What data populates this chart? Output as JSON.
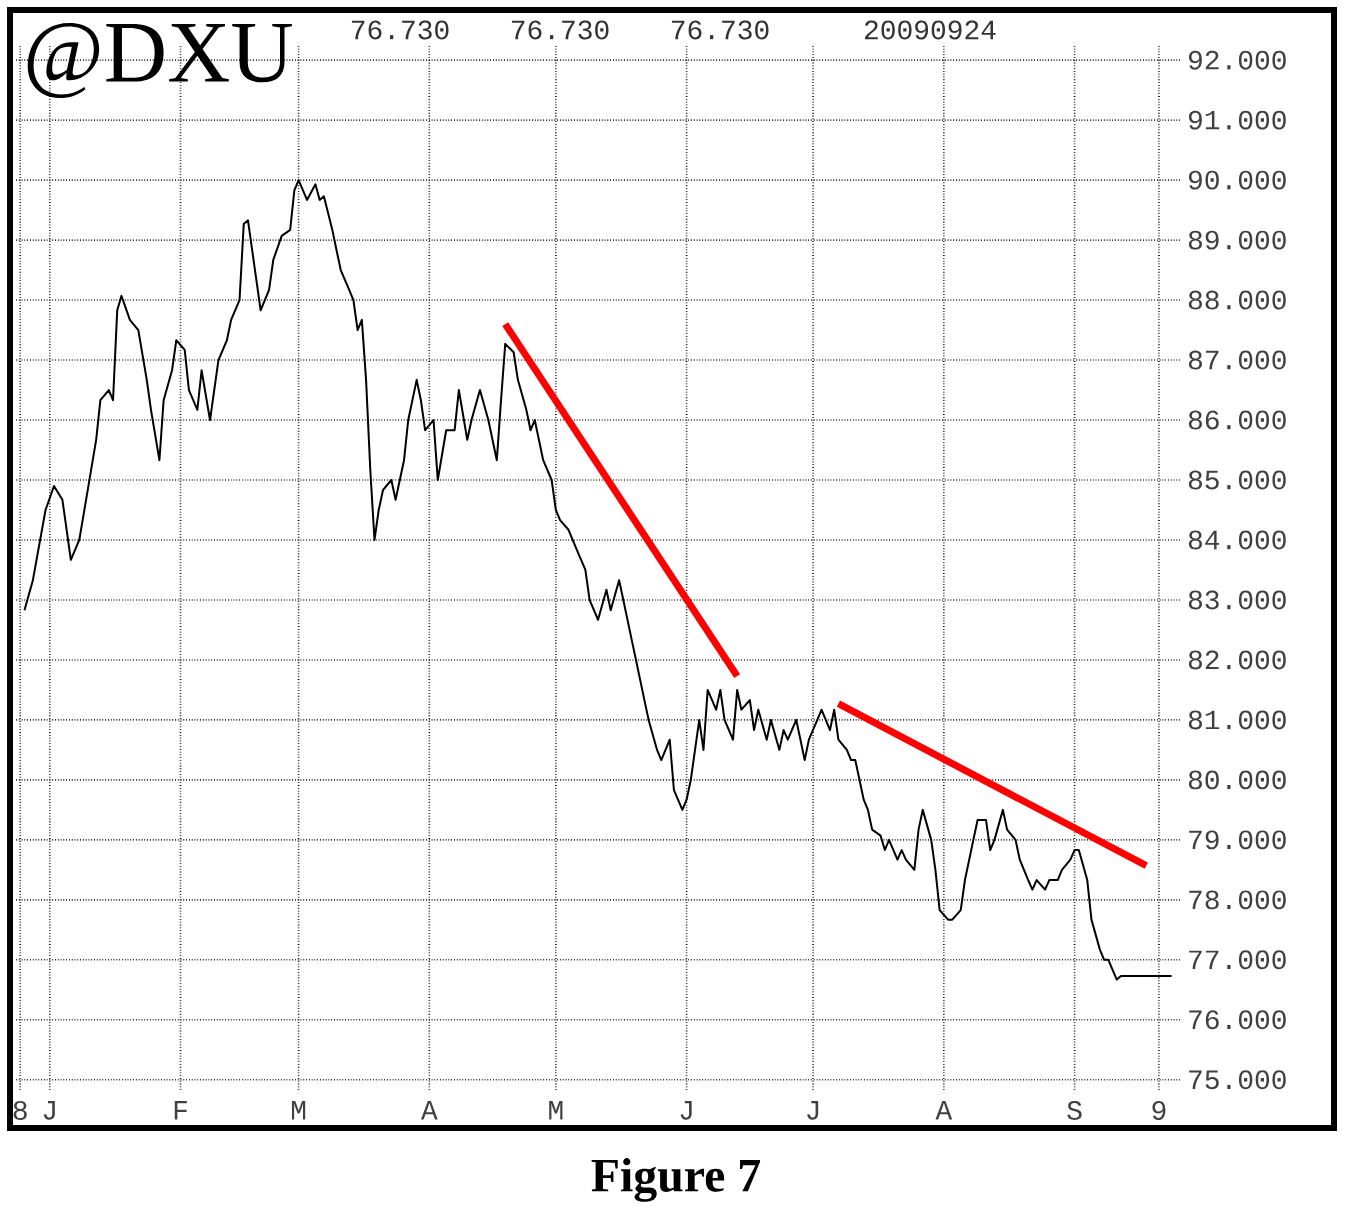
{
  "chart_data": {
    "type": "line",
    "title": "@DXU",
    "annotations": [
      "76.730",
      "76.730",
      "76.730",
      "20090924",
      "Figure 7"
    ],
    "xlim": [
      "2008-12-24",
      "2009-09-26"
    ],
    "ylim": [
      74.83,
      92.27
    ],
    "xticks": [
      {
        "value": "2008-12-25",
        "label": "8"
      },
      {
        "value": "2009-01-01",
        "label": "J"
      },
      {
        "value": "2009-02-01",
        "label": "F"
      },
      {
        "value": "2009-03-01",
        "label": "M"
      },
      {
        "value": "2009-04-01",
        "label": "A"
      },
      {
        "value": "2009-05-01",
        "label": "M"
      },
      {
        "value": "2009-06-01",
        "label": "J"
      },
      {
        "value": "2009-07-01",
        "label": "J"
      },
      {
        "value": "2009-08-01",
        "label": "A"
      },
      {
        "value": "2009-09-01",
        "label": "S"
      },
      {
        "value": "2009-09-21",
        "label": "9"
      }
    ],
    "yticks": [
      {
        "value": 75,
        "label": "75.000"
      },
      {
        "value": 76,
        "label": "76.000"
      },
      {
        "value": 77,
        "label": "77.000"
      },
      {
        "value": 78,
        "label": "78.000"
      },
      {
        "value": 79,
        "label": "79.000"
      },
      {
        "value": 80,
        "label": "80.000"
      },
      {
        "value": 81,
        "label": "81.000"
      },
      {
        "value": 82,
        "label": "82.000"
      },
      {
        "value": 83,
        "label": "83.000"
      },
      {
        "value": 84,
        "label": "84.000"
      },
      {
        "value": 85,
        "label": "85.000"
      },
      {
        "value": 86,
        "label": "86.000"
      },
      {
        "value": 87,
        "label": "87.000"
      },
      {
        "value": 88,
        "label": "88.000"
      },
      {
        "value": 89,
        "label": "89.000"
      },
      {
        "value": 90,
        "label": "90.000"
      },
      {
        "value": 91,
        "label": "91.000"
      },
      {
        "value": 92,
        "label": "92.000"
      }
    ],
    "grid": true,
    "marker": "none",
    "line_style": "solid",
    "series": [
      {
        "color": "#000000",
        "x": [
          "2008-12-26",
          "2008-12-28",
          "2008-12-31",
          "2009-01-02",
          "2009-01-04",
          "2009-01-06",
          "2009-01-08",
          "2009-01-10",
          "2009-01-12",
          "2009-01-13",
          "2009-01-15",
          "2009-01-16",
          "2009-01-17",
          "2009-01-18",
          "2009-01-20",
          "2009-01-22",
          "2009-01-24",
          "2009-01-25",
          "2009-01-27",
          "2009-01-28",
          "2009-01-30",
          "2009-01-31",
          "2009-02-02",
          "2009-02-03",
          "2009-02-05",
          "2009-02-06",
          "2009-02-08",
          "2009-02-10",
          "2009-02-12",
          "2009-02-13",
          "2009-02-15",
          "2009-02-16",
          "2009-02-17",
          "2009-02-19",
          "2009-02-20",
          "2009-02-22",
          "2009-02-23",
          "2009-02-25",
          "2009-02-27",
          "2009-02-28",
          "2009-03-01",
          "2009-03-03",
          "2009-03-05",
          "2009-03-06",
          "2009-03-07",
          "2009-03-09",
          "2009-03-10",
          "2009-03-11",
          "2009-03-13",
          "2009-03-14",
          "2009-03-15",
          "2009-03-16",
          "2009-03-17",
          "2009-03-18",
          "2009-03-19",
          "2009-03-20",
          "2009-03-21",
          "2009-03-23",
          "2009-03-24",
          "2009-03-26",
          "2009-03-27",
          "2009-03-29",
          "2009-03-30",
          "2009-03-31",
          "2009-04-02",
          "2009-04-03",
          "2009-04-05",
          "2009-04-07",
          "2009-04-08",
          "2009-04-10",
          "2009-04-11",
          "2009-04-13",
          "2009-04-15",
          "2009-04-17",
          "2009-04-18",
          "2009-04-19",
          "2009-04-21",
          "2009-04-22",
          "2009-04-24",
          "2009-04-25",
          "2009-04-26",
          "2009-04-28",
          "2009-04-30",
          "2009-05-01",
          "2009-05-02",
          "2009-05-04",
          "2009-05-06",
          "2009-05-08",
          "2009-05-09",
          "2009-05-11",
          "2009-05-13",
          "2009-05-14",
          "2009-05-16",
          "2009-05-17",
          "2009-05-19",
          "2009-05-20",
          "2009-05-22",
          "2009-05-23",
          "2009-05-25",
          "2009-05-26",
          "2009-05-28",
          "2009-05-29",
          "2009-05-31",
          "2009-06-01",
          "2009-06-02",
          "2009-06-04",
          "2009-06-05",
          "2009-06-06",
          "2009-06-08",
          "2009-06-09",
          "2009-06-10",
          "2009-06-12",
          "2009-06-13",
          "2009-06-14",
          "2009-06-16",
          "2009-06-17",
          "2009-06-18",
          "2009-06-20",
          "2009-06-21",
          "2009-06-23",
          "2009-06-24",
          "2009-06-25",
          "2009-06-27",
          "2009-06-28",
          "2009-06-29",
          "2009-06-30",
          "2009-07-02",
          "2009-07-03",
          "2009-07-05",
          "2009-07-06",
          "2009-07-07",
          "2009-07-09",
          "2009-07-10",
          "2009-07-11",
          "2009-07-13",
          "2009-07-14",
          "2009-07-15",
          "2009-07-17",
          "2009-07-18",
          "2009-07-19",
          "2009-07-21",
          "2009-07-22",
          "2009-07-23",
          "2009-07-25",
          "2009-07-26",
          "2009-07-27",
          "2009-07-29",
          "2009-07-30",
          "2009-07-31",
          "2009-08-02",
          "2009-08-03",
          "2009-08-05",
          "2009-08-06",
          "2009-08-08",
          "2009-08-09",
          "2009-08-11",
          "2009-08-12",
          "2009-08-13",
          "2009-08-15",
          "2009-08-16",
          "2009-08-18",
          "2009-08-19",
          "2009-08-21",
          "2009-08-22",
          "2009-08-23",
          "2009-08-25",
          "2009-08-26",
          "2009-08-28",
          "2009-08-29",
          "2009-08-31",
          "2009-09-01",
          "2009-09-02",
          "2009-09-04",
          "2009-09-05",
          "2009-09-07",
          "2009-09-08",
          "2009-09-09",
          "2009-09-11",
          "2009-09-12",
          "2009-09-14",
          "2009-09-24"
        ],
        "values": [
          82.83,
          83.33,
          84.5,
          84.9,
          84.67,
          83.67,
          84.0,
          84.83,
          85.67,
          86.33,
          86.5,
          86.33,
          87.83,
          88.07,
          87.67,
          87.5,
          86.67,
          86.17,
          85.33,
          86.33,
          86.83,
          87.33,
          87.17,
          86.5,
          86.17,
          86.83,
          86.0,
          87.0,
          87.33,
          87.67,
          88.0,
          89.27,
          89.33,
          88.33,
          87.83,
          88.17,
          88.67,
          89.07,
          89.17,
          89.83,
          90.0,
          89.67,
          89.93,
          89.67,
          89.73,
          89.17,
          88.83,
          88.5,
          88.17,
          88.0,
          87.5,
          87.67,
          86.67,
          85.17,
          84.0,
          84.5,
          84.83,
          85.0,
          84.67,
          85.33,
          86.0,
          86.67,
          86.33,
          85.83,
          86.0,
          85.0,
          85.83,
          85.83,
          86.5,
          85.67,
          86.0,
          86.5,
          86.0,
          85.33,
          86.33,
          87.27,
          87.13,
          86.67,
          86.17,
          85.83,
          86.0,
          85.33,
          85.0,
          84.5,
          84.33,
          84.17,
          83.83,
          83.5,
          83.0,
          82.67,
          83.17,
          82.83,
          83.33,
          83.0,
          82.33,
          82.0,
          81.33,
          81.0,
          80.5,
          80.33,
          80.67,
          79.83,
          79.5,
          79.67,
          80.0,
          81.0,
          80.5,
          81.5,
          81.17,
          81.5,
          81.0,
          80.67,
          81.5,
          81.17,
          81.33,
          80.83,
          81.17,
          80.67,
          81.0,
          80.5,
          80.83,
          80.67,
          81.0,
          80.67,
          80.33,
          80.67,
          81.0,
          81.17,
          80.83,
          81.17,
          80.67,
          80.5,
          80.33,
          80.33,
          79.67,
          79.5,
          79.17,
          79.07,
          78.83,
          79.0,
          78.67,
          78.83,
          78.67,
          78.5,
          79.17,
          79.5,
          79.0,
          78.5,
          77.83,
          77.67,
          77.67,
          77.83,
          78.33,
          79.0,
          79.33,
          79.33,
          78.83,
          79.0,
          79.5,
          79.17,
          79.0,
          78.67,
          78.33,
          78.17,
          78.33,
          78.17,
          78.33,
          78.33,
          78.5,
          78.67,
          78.83,
          78.83,
          78.33,
          77.67,
          77.17,
          77.0,
          77.0,
          76.67,
          76.73,
          76.73,
          76.73
        ]
      },
      {
        "color": "#ff0000",
        "x": [
          "2009-04-19",
          "2009-06-13"
        ],
        "values": [
          87.6,
          81.73
        ]
      },
      {
        "color": "#ff0000",
        "x": [
          "2009-07-07",
          "2009-09-18"
        ],
        "values": [
          81.27,
          78.57
        ]
      }
    ]
  }
}
